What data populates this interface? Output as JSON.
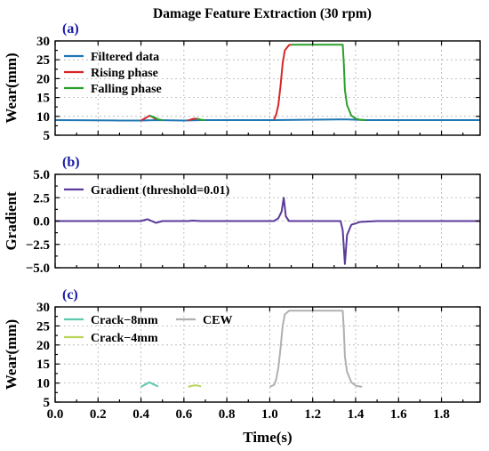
{
  "title": "Damage Feature Extraction (30 rpm)",
  "chart_data": [
    {
      "type": "line",
      "panel_label": "(a)",
      "ylabel": "Wear(mm)",
      "ylim": [
        5,
        30
      ],
      "yticks": [
        5,
        10,
        15,
        20,
        25,
        30
      ],
      "xlim": [
        0,
        1.98
      ],
      "grid": true,
      "legend": "top-left",
      "series": [
        {
          "name": "Filtered data",
          "color": "#1f77b4",
          "points": [
            [
              0,
              9.0
            ],
            [
              0.3,
              8.9
            ],
            [
              0.4,
              8.9
            ],
            [
              0.47,
              9.0
            ],
            [
              0.6,
              8.9
            ],
            [
              0.68,
              9.0
            ],
            [
              1.02,
              9.0
            ],
            [
              1.36,
              9.2
            ],
            [
              1.45,
              9.0
            ],
            [
              1.98,
              9.0
            ]
          ]
        },
        {
          "name": "Rising phase",
          "color": "#d62728",
          "segments": [
            [
              [
                0.4,
                8.9
              ],
              [
                0.42,
                9.5
              ],
              [
                0.44,
                10.2
              ],
              [
                0.46,
                9.6
              ],
              [
                0.47,
                9.2
              ]
            ],
            [
              [
                0.62,
                8.9
              ],
              [
                0.64,
                9.3
              ],
              [
                0.66,
                9.4
              ]
            ],
            [
              [
                1.02,
                9.2
              ],
              [
                1.03,
                10.5
              ],
              [
                1.04,
                13
              ],
              [
                1.05,
                18
              ],
              [
                1.06,
                24
              ],
              [
                1.07,
                27.5
              ],
              [
                1.09,
                28.9
              ],
              [
                1.1,
                29.0
              ]
            ]
          ]
        },
        {
          "name": "Falling phase",
          "color": "#2ca02c",
          "segments": [
            [
              [
                0.44,
                10.2
              ],
              [
                0.46,
                9.8
              ],
              [
                0.48,
                9.2
              ],
              [
                0.5,
                9.0
              ]
            ],
            [
              [
                0.66,
                9.4
              ],
              [
                0.68,
                9.1
              ],
              [
                0.7,
                9.0
              ]
            ],
            [
              [
                1.1,
                29.0
              ],
              [
                1.34,
                29.0
              ],
              [
                1.345,
                24
              ],
              [
                1.35,
                17
              ],
              [
                1.36,
                13
              ],
              [
                1.38,
                10.2
              ],
              [
                1.4,
                9.4
              ],
              [
                1.42,
                9.1
              ],
              [
                1.45,
                9.0
              ]
            ]
          ]
        }
      ]
    },
    {
      "type": "line",
      "panel_label": "(b)",
      "ylabel": "Gradient",
      "ylim": [
        -5,
        5
      ],
      "yticks": [
        -5.0,
        -2.5,
        0.0,
        2.5,
        5.0
      ],
      "xlim": [
        0,
        1.98
      ],
      "grid": true,
      "legend": "top-left",
      "series": [
        {
          "name": "Gradient (threshold=0.01)",
          "color": "#5b3a99",
          "points": [
            [
              0,
              0.0
            ],
            [
              0.4,
              0.0
            ],
            [
              0.43,
              0.2
            ],
            [
              0.45,
              0.0
            ],
            [
              0.47,
              -0.2
            ],
            [
              0.5,
              0.0
            ],
            [
              0.62,
              0.0
            ],
            [
              0.64,
              0.05
            ],
            [
              0.68,
              0.0
            ],
            [
              1.02,
              0.0
            ],
            [
              1.04,
              0.3
            ],
            [
              1.055,
              1.0
            ],
            [
              1.065,
              2.5
            ],
            [
              1.075,
              0.5
            ],
            [
              1.09,
              0.0
            ],
            [
              1.33,
              0.0
            ],
            [
              1.34,
              -1.0
            ],
            [
              1.35,
              -4.6
            ],
            [
              1.36,
              -1.5
            ],
            [
              1.38,
              -0.4
            ],
            [
              1.42,
              -0.1
            ],
            [
              1.5,
              0.0
            ],
            [
              1.98,
              0.0
            ]
          ]
        }
      ]
    },
    {
      "type": "line",
      "panel_label": "(c)",
      "ylabel": "Wear(mm)",
      "xlabel": "Time(s)",
      "ylim": [
        5,
        30
      ],
      "yticks": [
        5,
        10,
        15,
        20,
        25,
        30
      ],
      "xlim": [
        0,
        1.98
      ],
      "xticks": [
        0.0,
        0.2,
        0.4,
        0.6,
        0.8,
        1.0,
        1.2,
        1.4,
        1.6,
        1.8
      ],
      "grid": true,
      "legend": "top-left",
      "series": [
        {
          "name": "Crack−8mm",
          "color": "#5fc8b0",
          "points": [
            [
              0.4,
              9.0
            ],
            [
              0.42,
              9.6
            ],
            [
              0.44,
              10.2
            ],
            [
              0.46,
              9.6
            ],
            [
              0.48,
              9.1
            ]
          ]
        },
        {
          "name": "Crack−4mm",
          "color": "#b8d45a",
          "points": [
            [
              0.62,
              9.0
            ],
            [
              0.64,
              9.3
            ],
            [
              0.66,
              9.4
            ],
            [
              0.68,
              9.1
            ]
          ]
        },
        {
          "name": "CEW",
          "color": "#b0b0b0",
          "points": [
            [
              1.0,
              9.0
            ],
            [
              1.02,
              9.5
            ],
            [
              1.03,
              11
            ],
            [
              1.04,
              14
            ],
            [
              1.05,
              19
            ],
            [
              1.06,
              25
            ],
            [
              1.07,
              28
            ],
            [
              1.09,
              29.0
            ],
            [
              1.34,
              29.0
            ],
            [
              1.345,
              24
            ],
            [
              1.35,
              17
            ],
            [
              1.36,
              13
            ],
            [
              1.38,
              10.2
            ],
            [
              1.4,
              9.3
            ],
            [
              1.43,
              9.0
            ]
          ]
        }
      ]
    }
  ]
}
